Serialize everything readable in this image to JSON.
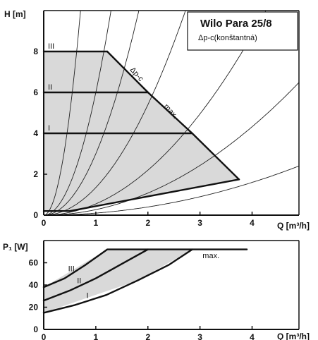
{
  "chart_data": [
    {
      "type": "line",
      "ylabel": "H [m]",
      "xlabel": "Q [m³/h]",
      "xlim": [
        0,
        4.9
      ],
      "ylim": [
        0,
        10
      ],
      "xticks": [
        "0",
        "1",
        "2",
        "3",
        "4"
      ],
      "yticks": [
        "0",
        "2",
        "4",
        "6",
        "8"
      ],
      "grid": false,
      "legend": {
        "title": "Wilo Para 25/8",
        "subtitle": "Δp-c(konštantná)",
        "position": "top-right"
      },
      "operating_area": [
        [
          0,
          0.2
        ],
        [
          0,
          8
        ],
        [
          1.22,
          8
        ],
        [
          2.85,
          4
        ],
        [
          3.75,
          1.75
        ],
        [
          0.5,
          0.2
        ]
      ],
      "series": [
        {
          "name": "III",
          "x": [
            0,
            1.22
          ],
          "y": [
            8,
            8
          ]
        },
        {
          "name": "II",
          "x": [
            0,
            2.0
          ],
          "y": [
            6,
            6
          ]
        },
        {
          "name": "I",
          "x": [
            0,
            2.85
          ],
          "y": [
            4,
            4
          ]
        },
        {
          "name": "max.",
          "x": [
            1.22,
            2.0,
            2.85,
            3.75
          ],
          "y": [
            8,
            6,
            4,
            1.75
          ]
        },
        {
          "name": "",
          "x": [
            0,
            0.5,
            3.75
          ],
          "y": [
            0.2,
            0.2,
            1.75
          ]
        }
      ],
      "annotations": [
        {
          "text": "Δp-c",
          "x": 1.65,
          "y": 7.1
        },
        {
          "text": "max.",
          "x": 2.3,
          "y": 5.3
        }
      ],
      "system_curves": [
        {
          "k": 20.0
        },
        {
          "k": 6.0
        },
        {
          "k": 3.0
        },
        {
          "k": 1.35
        },
        {
          "k": 0.55
        },
        {
          "k": 0.27
        },
        {
          "k": 0.1
        }
      ]
    },
    {
      "type": "line",
      "ylabel": "P₁ [W]",
      "xlabel": "Q [m³/h]",
      "xlim": [
        0,
        4.9
      ],
      "ylim": [
        0,
        80
      ],
      "xticks": [
        "0",
        "1",
        "2",
        "3",
        "4"
      ],
      "yticks": [
        "0",
        "20",
        "40",
        "60"
      ],
      "grid": false,
      "operating_area": [
        [
          0,
          38
        ],
        [
          1.22,
          72
        ],
        [
          2.85,
          72
        ],
        [
          1.8,
          44
        ],
        [
          0,
          15
        ]
      ],
      "series": [
        {
          "name": "III",
          "x": [
            0,
            0.4,
            0.8,
            1.22,
            3.9
          ],
          "y": [
            38,
            46,
            58,
            72,
            72
          ]
        },
        {
          "name": "II",
          "x": [
            0,
            0.5,
            1.0,
            1.5,
            2.0
          ],
          "y": [
            26,
            35,
            46,
            59,
            72
          ]
        },
        {
          "name": "I",
          "x": [
            0,
            0.6,
            1.2,
            1.8,
            2.4,
            2.85
          ],
          "y": [
            15,
            22,
            31,
            44,
            58,
            72
          ]
        }
      ],
      "annotations": [
        {
          "text": "max.",
          "x": 3.05,
          "y": 64
        }
      ]
    }
  ]
}
